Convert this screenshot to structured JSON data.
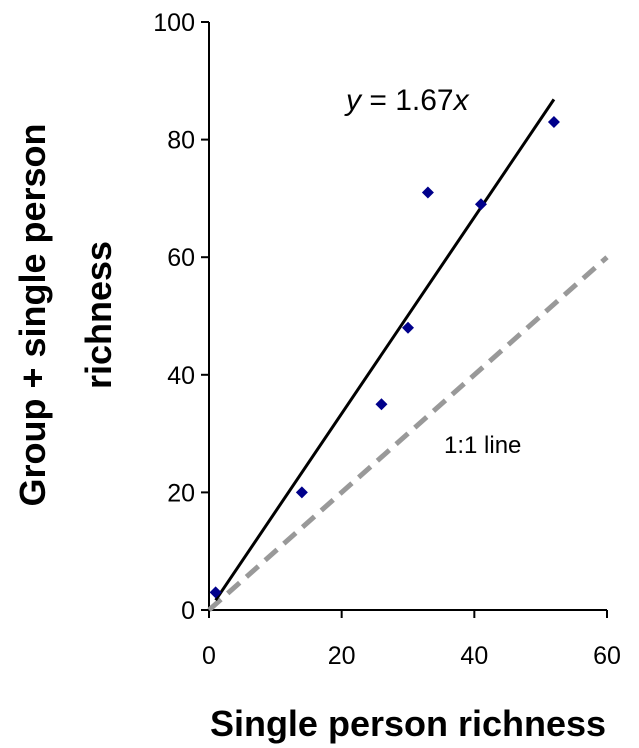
{
  "chart_data": {
    "type": "scatter",
    "title": "",
    "xlabel": "Single person richness",
    "ylabel_lines": [
      "Group + single person",
      "richness"
    ],
    "xlim": [
      0,
      60
    ],
    "ylim": [
      0,
      100
    ],
    "x_ticks": [
      "0",
      "20",
      "40",
      "60"
    ],
    "y_ticks": [
      "0",
      "20",
      "40",
      "60",
      "80",
      "100"
    ],
    "grid": false,
    "points": [
      {
        "x": 1,
        "y": 3
      },
      {
        "x": 14,
        "y": 20
      },
      {
        "x": 26,
        "y": 35
      },
      {
        "x": 30,
        "y": 48
      },
      {
        "x": 33,
        "y": 71
      },
      {
        "x": 41,
        "y": 69
      },
      {
        "x": 52,
        "y": 83
      }
    ],
    "fit_line": {
      "slope": 1.67,
      "x_range": [
        1,
        52
      ],
      "label_var_y": "y",
      "label_mid": " = 1.67",
      "label_var_x": "x"
    },
    "reference_line": {
      "slope": 1,
      "x_range": [
        0,
        60
      ],
      "label": "1:1 line"
    },
    "colors": {
      "points": "#00008B",
      "fit_line": "#000000",
      "reference_line": "#999999"
    }
  }
}
